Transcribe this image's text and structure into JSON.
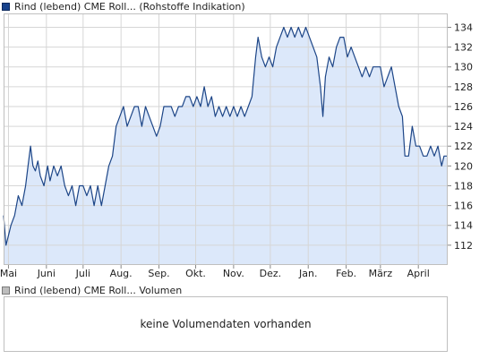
{
  "legend": {
    "price_label": "Rind (lebend) CME Roll... (Rohstoffe Indikation)",
    "volume_label": "Rind (lebend) CME Roll... Volumen"
  },
  "volume_panel": {
    "message": "keine Volumendaten vorhanden"
  },
  "colors": {
    "line": "#1c4587",
    "area": "#dce8fa",
    "grid": "#d6d6d6",
    "frame": "#bfbfbf",
    "legend_price": "#17428c",
    "legend_volume": "#bdbdbd"
  },
  "chart_data": {
    "type": "area",
    "title": "",
    "xlabel": "",
    "ylabel": "",
    "ylim": [
      110,
      135.4
    ],
    "y_ticks": [
      112,
      114,
      116,
      118,
      120,
      122,
      124,
      126,
      128,
      130,
      132,
      134
    ],
    "x_range": [
      "2024-04-27",
      "2025-04-25"
    ],
    "x_ticks": [
      {
        "date": "2024-05-01",
        "label": "Mai"
      },
      {
        "date": "2024-06-01",
        "label": "Juni"
      },
      {
        "date": "2024-07-01",
        "label": "Juli"
      },
      {
        "date": "2024-08-01",
        "label": "Aug."
      },
      {
        "date": "2024-09-01",
        "label": "Sep."
      },
      {
        "date": "2024-10-01",
        "label": "Okt."
      },
      {
        "date": "2024-11-01",
        "label": "Nov."
      },
      {
        "date": "2024-12-01",
        "label": "Dez."
      },
      {
        "date": "2025-01-01",
        "label": "Jan."
      },
      {
        "date": "2025-02-01",
        "label": "Feb."
      },
      {
        "date": "2025-03-01",
        "label": "März"
      },
      {
        "date": "2025-04-01",
        "label": "April"
      }
    ],
    "grid": true,
    "y_axis_side": "right",
    "series": [
      {
        "points": [
          [
            "2024-04-27",
            115.0
          ],
          [
            "2024-04-29",
            112.0
          ],
          [
            "2024-05-01",
            113.0
          ],
          [
            "2024-05-03",
            114.0
          ],
          [
            "2024-05-06",
            115.0
          ],
          [
            "2024-05-09",
            117.0
          ],
          [
            "2024-05-12",
            116.0
          ],
          [
            "2024-05-15",
            118.0
          ],
          [
            "2024-05-17",
            120.0
          ],
          [
            "2024-05-19",
            122.0
          ],
          [
            "2024-05-21",
            120.0
          ],
          [
            "2024-05-23",
            119.5
          ],
          [
            "2024-05-25",
            120.5
          ],
          [
            "2024-05-27",
            119.0
          ],
          [
            "2024-05-30",
            118.0
          ],
          [
            "2024-06-02",
            120.0
          ],
          [
            "2024-06-04",
            118.5
          ],
          [
            "2024-06-07",
            120.0
          ],
          [
            "2024-06-10",
            119.0
          ],
          [
            "2024-06-13",
            120.0
          ],
          [
            "2024-06-16",
            118.0
          ],
          [
            "2024-06-19",
            117.0
          ],
          [
            "2024-06-22",
            118.0
          ],
          [
            "2024-06-25",
            116.0
          ],
          [
            "2024-06-28",
            118.0
          ],
          [
            "2024-07-01",
            118.0
          ],
          [
            "2024-07-04",
            117.0
          ],
          [
            "2024-07-07",
            118.0
          ],
          [
            "2024-07-10",
            116.0
          ],
          [
            "2024-07-13",
            118.0
          ],
          [
            "2024-07-16",
            116.0
          ],
          [
            "2024-07-19",
            118.0
          ],
          [
            "2024-07-22",
            120.0
          ],
          [
            "2024-07-25",
            121.0
          ],
          [
            "2024-07-28",
            124.0
          ],
          [
            "2024-07-31",
            125.0
          ],
          [
            "2024-08-03",
            126.0
          ],
          [
            "2024-08-06",
            124.0
          ],
          [
            "2024-08-09",
            125.0
          ],
          [
            "2024-08-12",
            126.0
          ],
          [
            "2024-08-15",
            126.0
          ],
          [
            "2024-08-18",
            124.0
          ],
          [
            "2024-08-21",
            126.0
          ],
          [
            "2024-08-24",
            125.0
          ],
          [
            "2024-08-27",
            124.0
          ],
          [
            "2024-08-30",
            123.0
          ],
          [
            "2024-09-02",
            124.0
          ],
          [
            "2024-09-05",
            126.0
          ],
          [
            "2024-09-08",
            126.0
          ],
          [
            "2024-09-11",
            126.0
          ],
          [
            "2024-09-14",
            125.0
          ],
          [
            "2024-09-17",
            126.0
          ],
          [
            "2024-09-20",
            126.0
          ],
          [
            "2024-09-23",
            127.0
          ],
          [
            "2024-09-26",
            127.0
          ],
          [
            "2024-09-29",
            126.0
          ],
          [
            "2024-10-02",
            127.0
          ],
          [
            "2024-10-05",
            126.0
          ],
          [
            "2024-10-08",
            128.0
          ],
          [
            "2024-10-11",
            126.0
          ],
          [
            "2024-10-14",
            127.0
          ],
          [
            "2024-10-17",
            125.0
          ],
          [
            "2024-10-20",
            126.0
          ],
          [
            "2024-10-23",
            125.0
          ],
          [
            "2024-10-26",
            126.0
          ],
          [
            "2024-10-29",
            125.0
          ],
          [
            "2024-11-01",
            126.0
          ],
          [
            "2024-11-04",
            125.0
          ],
          [
            "2024-11-07",
            126.0
          ],
          [
            "2024-11-10",
            125.0
          ],
          [
            "2024-11-13",
            126.0
          ],
          [
            "2024-11-16",
            127.0
          ],
          [
            "2024-11-19",
            131.0
          ],
          [
            "2024-11-21",
            133.0
          ],
          [
            "2024-11-24",
            131.0
          ],
          [
            "2024-11-27",
            130.0
          ],
          [
            "2024-11-30",
            131.0
          ],
          [
            "2024-12-03",
            130.0
          ],
          [
            "2024-12-06",
            132.0
          ],
          [
            "2024-12-09",
            133.0
          ],
          [
            "2024-12-12",
            134.0
          ],
          [
            "2024-12-15",
            133.0
          ],
          [
            "2024-12-18",
            134.0
          ],
          [
            "2024-12-21",
            133.0
          ],
          [
            "2024-12-24",
            134.0
          ],
          [
            "2024-12-27",
            133.0
          ],
          [
            "2024-12-30",
            134.0
          ],
          [
            "2025-01-02",
            133.0
          ],
          [
            "2025-01-05",
            132.0
          ],
          [
            "2025-01-08",
            131.0
          ],
          [
            "2025-01-11",
            128.0
          ],
          [
            "2025-01-13",
            125.0
          ],
          [
            "2025-01-15",
            129.0
          ],
          [
            "2025-01-18",
            131.0
          ],
          [
            "2025-01-21",
            130.0
          ],
          [
            "2025-01-24",
            132.0
          ],
          [
            "2025-01-27",
            133.0
          ],
          [
            "2025-01-30",
            133.0
          ],
          [
            "2025-02-02",
            131.0
          ],
          [
            "2025-02-05",
            132.0
          ],
          [
            "2025-02-08",
            131.0
          ],
          [
            "2025-02-11",
            130.0
          ],
          [
            "2025-02-14",
            129.0
          ],
          [
            "2025-02-17",
            130.0
          ],
          [
            "2025-02-20",
            129.0
          ],
          [
            "2025-02-23",
            130.0
          ],
          [
            "2025-02-26",
            130.0
          ],
          [
            "2025-03-01",
            130.0
          ],
          [
            "2025-03-04",
            128.0
          ],
          [
            "2025-03-07",
            129.0
          ],
          [
            "2025-03-10",
            130.0
          ],
          [
            "2025-03-13",
            128.0
          ],
          [
            "2025-03-16",
            126.0
          ],
          [
            "2025-03-19",
            125.0
          ],
          [
            "2025-03-21",
            121.0
          ],
          [
            "2025-03-24",
            121.0
          ],
          [
            "2025-03-27",
            124.0
          ],
          [
            "2025-03-30",
            122.0
          ],
          [
            "2025-04-02",
            122.0
          ],
          [
            "2025-04-05",
            121.0
          ],
          [
            "2025-04-08",
            121.0
          ],
          [
            "2025-04-11",
            122.0
          ],
          [
            "2025-04-14",
            121.0
          ],
          [
            "2025-04-17",
            122.0
          ],
          [
            "2025-04-20",
            120.0
          ],
          [
            "2025-04-22",
            121.0
          ],
          [
            "2025-04-25",
            121.0
          ]
        ]
      }
    ]
  }
}
